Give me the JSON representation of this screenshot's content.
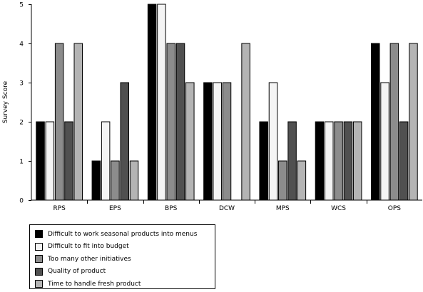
{
  "chart_data": {
    "type": "bar",
    "title": "",
    "xlabel": "",
    "ylabel": "Survey Score",
    "ylim": [
      0,
      5
    ],
    "yticks": [
      "0",
      "1",
      "2",
      "3",
      "4",
      "5"
    ],
    "grid": false,
    "legend_position": "bottom-left",
    "categories": [
      "RPS",
      "EPS",
      "BPS",
      "DCW",
      "MPS",
      "WCS",
      "OPS"
    ],
    "series": [
      {
        "name": "Difficult to work seasonal products into menus",
        "color": "#000000",
        "values": [
          2,
          1,
          5,
          3,
          2,
          2,
          4
        ]
      },
      {
        "name": "Difficult to fit into budget",
        "color": "#f4f4f4",
        "values": [
          2,
          2,
          5,
          3,
          3,
          2,
          3
        ]
      },
      {
        "name": "Too many other initiatives",
        "color": "#8c8c8c",
        "values": [
          4,
          1,
          4,
          3,
          1,
          2,
          4
        ]
      },
      {
        "name": "Quality of product",
        "color": "#505050",
        "values": [
          2,
          3,
          4,
          0,
          2,
          2,
          2
        ]
      },
      {
        "name": "Time to handle fresh product",
        "color": "#b4b4b4",
        "values": [
          4,
          1,
          3,
          4,
          1,
          2,
          4
        ]
      }
    ]
  }
}
